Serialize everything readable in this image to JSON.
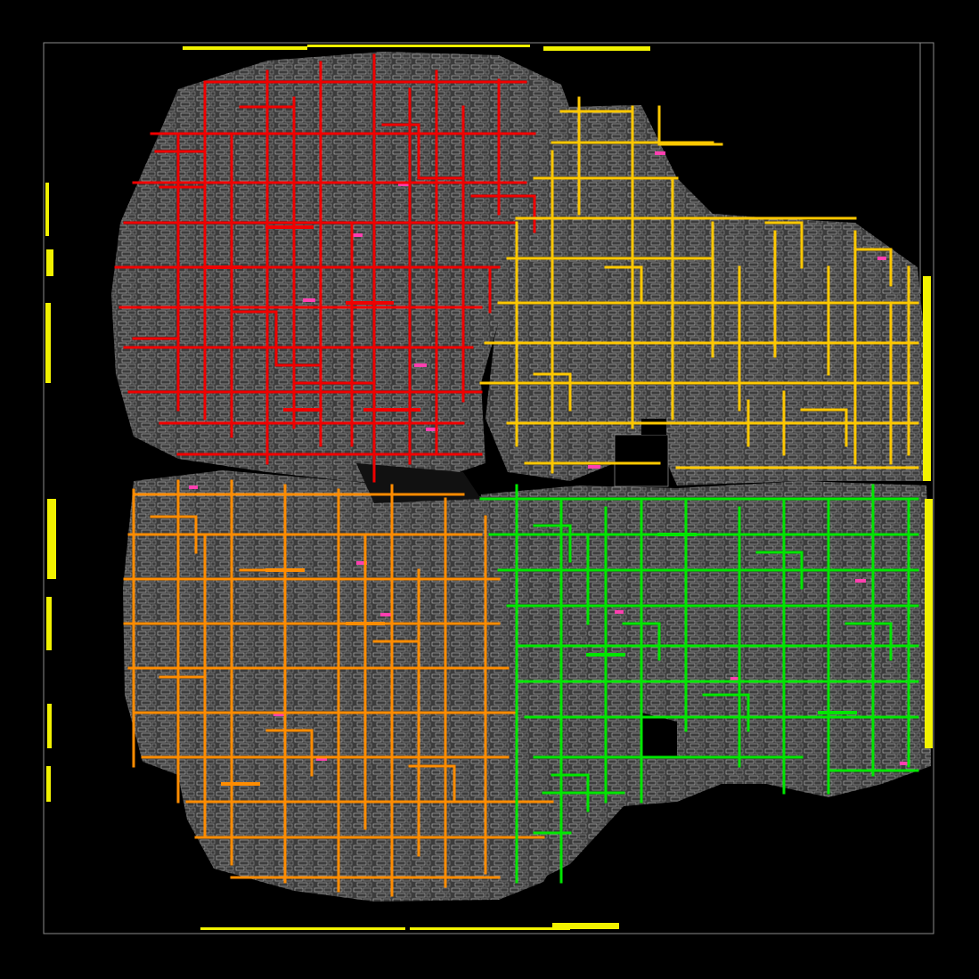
{
  "view": {
    "background_color": "#000000",
    "die_outline_color": "#8a8a8a",
    "cell_fill_color": "#4a4a4a",
    "cell_outline_color": "#bfbfbf",
    "io_pin_color": "#f2f200",
    "highlight_cell_color": "#ff3fb0"
  },
  "clock_regions": [
    {
      "id": "red",
      "color": "#f00000"
    },
    {
      "id": "yellow",
      "color": "#ffc800"
    },
    {
      "id": "orange",
      "color": "#ff8c00"
    },
    {
      "id": "green",
      "color": "#00e600"
    }
  ]
}
